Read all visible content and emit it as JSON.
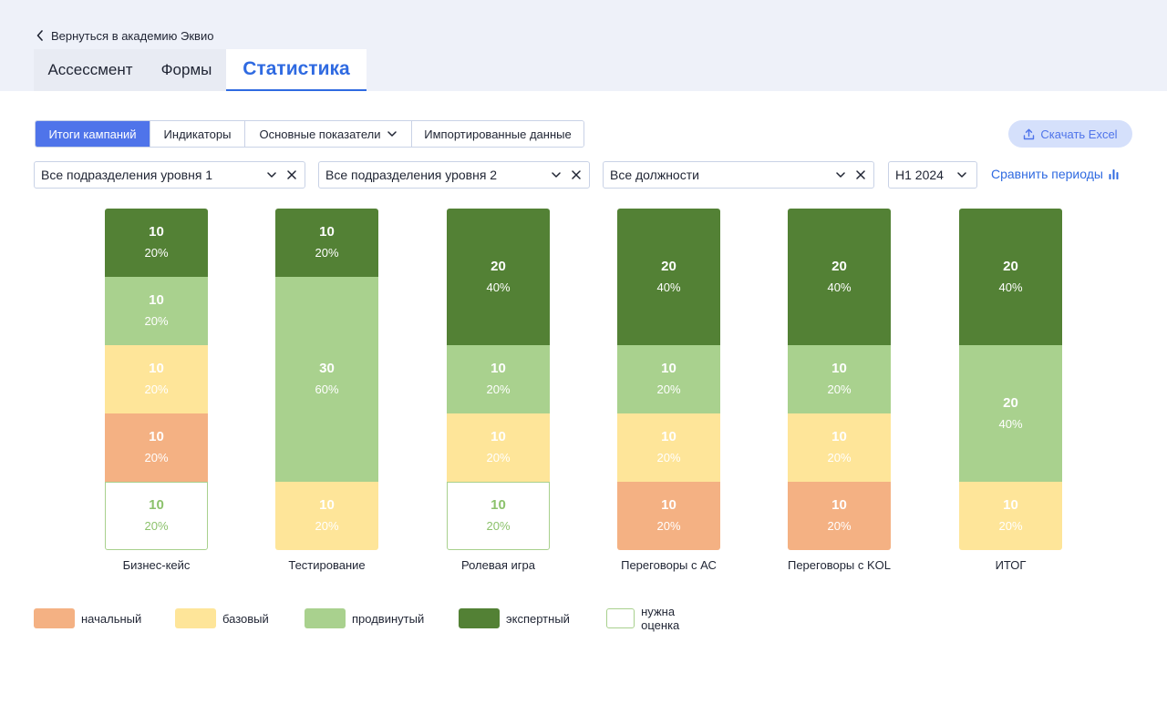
{
  "header": {
    "back_label": "Вернуться в академию Эквио",
    "tabs": [
      {
        "label": "Ассессмент"
      },
      {
        "label": "Формы"
      },
      {
        "label": "Статистика"
      }
    ]
  },
  "subtabs": [
    {
      "label": "Итоги кампаний"
    },
    {
      "label": "Индикаторы"
    },
    {
      "label": "Основные показатели"
    },
    {
      "label": "Импортированные данные"
    }
  ],
  "download_label": "Скачать Excel",
  "filters": {
    "level1": "Все подразделения уровня 1",
    "level2": "Все подразделения уровня 2",
    "position": "Все должности",
    "period": "H1 2024",
    "compare_label": "Сравнить периоды"
  },
  "colors": {
    "начальный": "#f4b183",
    "базовый": "#fee599",
    "продвинутый": "#a9d18e",
    "экспертный": "#538135",
    "accent": "#2f6ae1"
  },
  "chart_data": {
    "type": "bar",
    "stacked": true,
    "normalized": true,
    "categories": [
      "Бизнес-кейс",
      "Тестирование",
      "Ролевая игра",
      "Переговоры с АС",
      "Переговоры с KOL",
      "ИТОГ"
    ],
    "series": [
      {
        "name": "экспертный",
        "values": [
          10,
          10,
          20,
          20,
          20,
          20
        ],
        "percent": [
          "20%",
          "20%",
          "40%",
          "40%",
          "40%",
          "40%"
        ]
      },
      {
        "name": "продвинутый",
        "values": [
          10,
          30,
          10,
          10,
          10,
          20
        ],
        "percent": [
          "20%",
          "60%",
          "20%",
          "20%",
          "20%",
          "40%"
        ]
      },
      {
        "name": "базовый",
        "values": [
          10,
          10,
          10,
          10,
          10,
          10
        ],
        "percent": [
          "20%",
          "20%",
          "20%",
          "20%",
          "20%",
          "20%"
        ]
      },
      {
        "name": "начальный",
        "values": [
          10,
          0,
          0,
          10,
          10,
          0
        ],
        "percent": [
          "20%",
          "0%",
          "0%",
          "20%",
          "20%",
          "0%"
        ]
      },
      {
        "name": "нужна оценка",
        "values": [
          10,
          0,
          10,
          0,
          0,
          0
        ],
        "percent": [
          "20%",
          "0%",
          "20%",
          "0%",
          "0%",
          "0%"
        ]
      }
    ],
    "legend": [
      "начальный",
      "базовый",
      "продвинутый",
      "экспертный",
      "нужна оценка"
    ],
    "legend_position": "bottom-left"
  }
}
